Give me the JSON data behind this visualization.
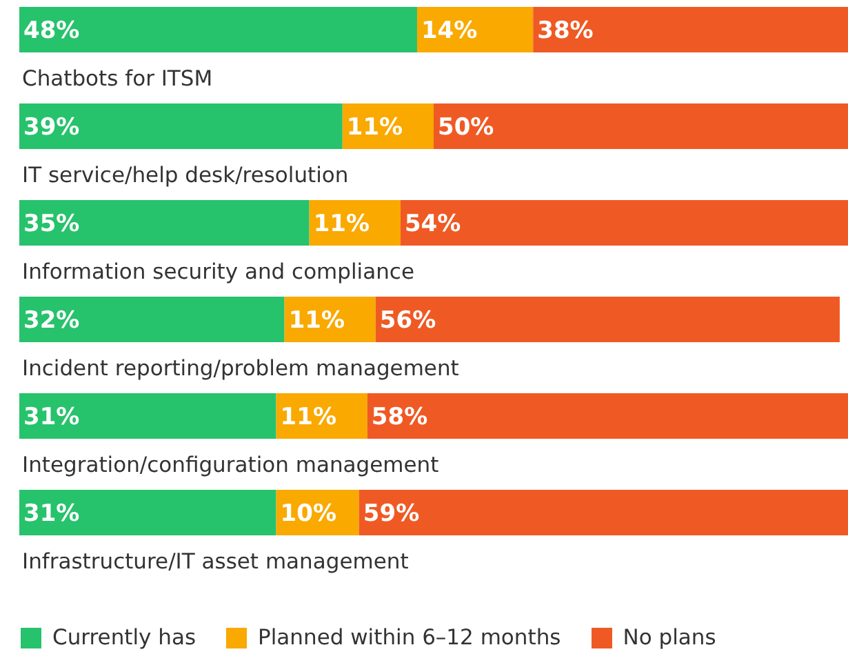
{
  "chart_data": {
    "type": "bar",
    "orientation": "horizontal",
    "stacked": true,
    "xlim": [
      0,
      100
    ],
    "tick_labels": false,
    "grid": false,
    "legend": "bottom left",
    "categories": [
      "Chatbots for ITSM",
      "IT service/help desk/resolution",
      "Information security and compliance",
      "Incident reporting/problem management",
      "Integration/configuration management",
      "Infrastructure/IT asset management"
    ],
    "series": [
      {
        "name": "Currently has",
        "color": "#27c26c",
        "values": [
          48,
          39,
          35,
          32,
          31,
          31
        ],
        "value_labels": [
          "48%",
          "39%",
          "35%",
          "32%",
          "31%",
          "31%"
        ]
      },
      {
        "name": "Planned within 6–12 months",
        "color": "#f9a900",
        "values": [
          14,
          11,
          11,
          11,
          11,
          10
        ],
        "value_labels": [
          "14%",
          "11%",
          "11%",
          "11%",
          "11%",
          "10%"
        ]
      },
      {
        "name": "No plans",
        "color": "#ef5a24",
        "values": [
          38,
          50,
          54,
          56,
          58,
          59
        ],
        "value_labels": [
          "38%",
          "50%",
          "54%",
          "56%",
          "58%",
          "59%"
        ]
      }
    ]
  }
}
